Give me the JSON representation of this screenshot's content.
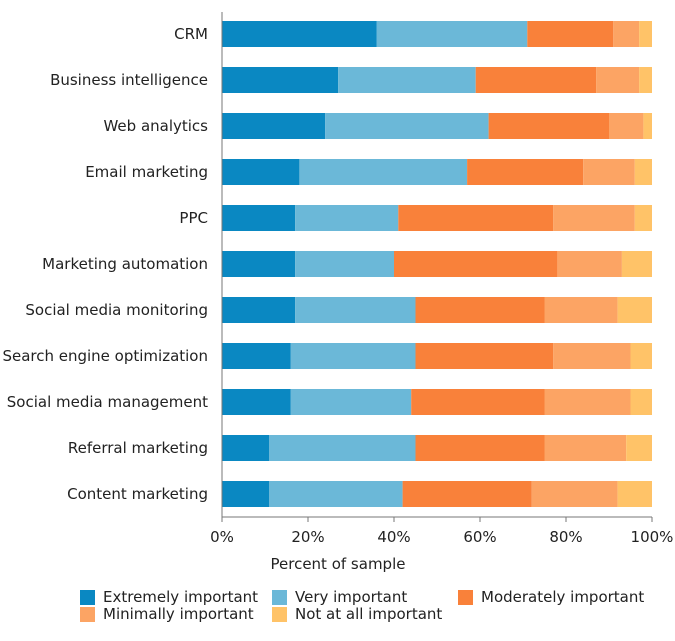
{
  "chart_data": {
    "type": "bar",
    "orientation": "horizontal",
    "stacked": true,
    "categories": [
      "CRM",
      "Business intelligence",
      "Web analytics",
      "Email marketing",
      "PPC",
      "Marketing automation",
      "Social media monitoring",
      "Search engine optimization",
      "Social media management",
      "Referral marketing",
      "Content marketing"
    ],
    "series": [
      {
        "name": "Extremely important",
        "color": "#0a88c2",
        "values": [
          36,
          27,
          24,
          18,
          17,
          17,
          17,
          16,
          16,
          11,
          11
        ]
      },
      {
        "name": "Very important",
        "color": "#6bb8d8",
        "values": [
          35,
          32,
          38,
          39,
          24,
          23,
          28,
          29,
          28,
          34,
          31
        ]
      },
      {
        "name": "Moderately important",
        "color": "#f9813a",
        "values": [
          20,
          28,
          28,
          27,
          36,
          38,
          30,
          32,
          31,
          30,
          30
        ]
      },
      {
        "name": "Minimally important",
        "color": "#fca464",
        "values": [
          6,
          10,
          8,
          12,
          19,
          15,
          17,
          18,
          20,
          19,
          20
        ]
      },
      {
        "name": "Not at all important",
        "color": "#ffc368",
        "values": [
          3,
          3,
          2,
          4,
          4,
          7,
          8,
          5,
          5,
          6,
          8
        ]
      }
    ],
    "xlabel": "Percent of sample",
    "ylabel": "",
    "xlim": [
      0,
      100
    ],
    "xticks": [
      "0%",
      "20%",
      "40%",
      "60%",
      "80%",
      "100%"
    ],
    "grid": false,
    "legend_position": "bottom"
  }
}
